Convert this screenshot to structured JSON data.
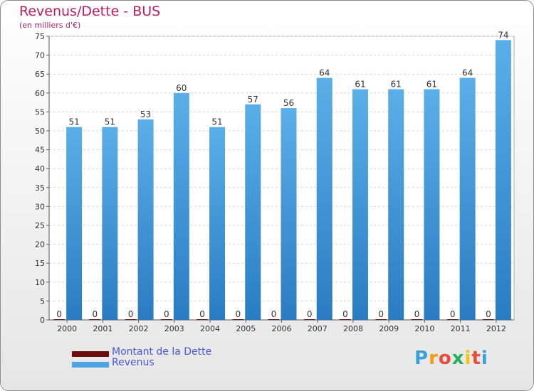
{
  "chart_data": {
    "type": "bar",
    "title": "Revenus/Dette - BUS",
    "subtitle": "(en milliers d'€)",
    "categories": [
      "2000",
      "2001",
      "2002",
      "2003",
      "2004",
      "2005",
      "2006",
      "2007",
      "2008",
      "2009",
      "2010",
      "2011",
      "2012"
    ],
    "series": [
      {
        "name": "Montant de la Dette",
        "color": "#6b0d0d",
        "values": [
          0,
          0,
          0,
          0,
          0,
          0,
          0,
          0,
          0,
          0,
          0,
          0,
          0
        ]
      },
      {
        "name": "Revenus",
        "color": "#4ea3e3",
        "values": [
          51,
          51,
          53,
          60,
          51,
          57,
          56,
          64,
          61,
          61,
          61,
          64,
          74
        ]
      }
    ],
    "yticks": [
      0,
      5,
      10,
      15,
      20,
      25,
      30,
      35,
      40,
      45,
      50,
      55,
      60,
      65,
      70,
      75
    ],
    "ylim": [
      0,
      75
    ],
    "grid": true,
    "legend_position": "bottom-left"
  },
  "logo": {
    "letters": [
      "P",
      "r",
      "o",
      "x",
      "i",
      "t",
      "i"
    ],
    "colors": [
      "#3aa0d8",
      "#f39c12",
      "#e74c3c",
      "#27ae60",
      "#f1c40f",
      "#e74c3c",
      "#3aa0d8"
    ]
  }
}
